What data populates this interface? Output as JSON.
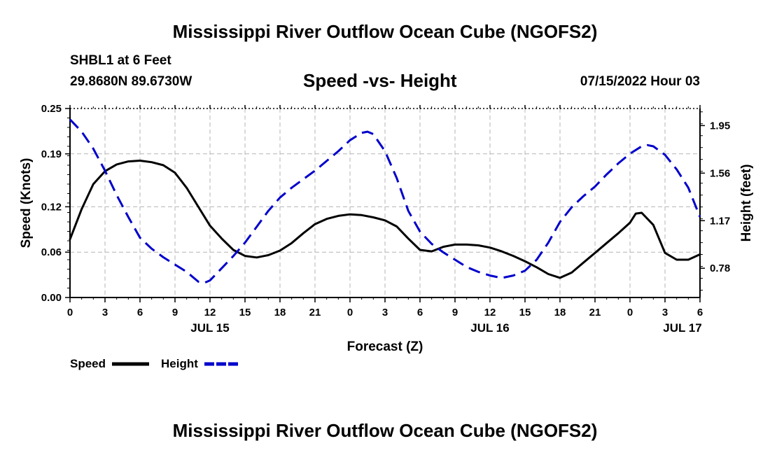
{
  "header": {
    "title": "Mississippi River Outflow Ocean Cube (NGOFS2)",
    "station": "SHBL1 at 6 Feet",
    "coords": "29.8680N  89.6730W",
    "subtitle": "Speed -vs- Height",
    "timestamp": "07/15/2022 Hour 03"
  },
  "footer": {
    "title": "Mississippi River Outflow Ocean Cube (NGOFS2)"
  },
  "colors": {
    "speed": "#000000",
    "height": "#0000cc",
    "grid": "#b4b4b4"
  },
  "chart_data": {
    "type": "line",
    "title": "Speed -vs- Height",
    "xlabel": "Forecast (Z)",
    "ylabel": "Speed (Knots)",
    "y2label": "Height (feet)",
    "x_range_hours": [
      0,
      54
    ],
    "x_ticks": [
      {
        "h": 0,
        "label": "0"
      },
      {
        "h": 3,
        "label": "3"
      },
      {
        "h": 6,
        "label": "6"
      },
      {
        "h": 9,
        "label": "9"
      },
      {
        "h": 12,
        "label": "12"
      },
      {
        "h": 15,
        "label": "15"
      },
      {
        "h": 18,
        "label": "18"
      },
      {
        "h": 21,
        "label": "21"
      },
      {
        "h": 24,
        "label": "0"
      },
      {
        "h": 27,
        "label": "3"
      },
      {
        "h": 30,
        "label": "6"
      },
      {
        "h": 33,
        "label": "9"
      },
      {
        "h": 36,
        "label": "12"
      },
      {
        "h": 39,
        "label": "15"
      },
      {
        "h": 42,
        "label": "18"
      },
      {
        "h": 45,
        "label": "21"
      },
      {
        "h": 48,
        "label": "0"
      },
      {
        "h": 51,
        "label": "3"
      },
      {
        "h": 54,
        "label": "6"
      }
    ],
    "date_labels": [
      {
        "h": 12,
        "label": "JUL 15"
      },
      {
        "h": 36,
        "label": "JUL 16"
      },
      {
        "h": 52.5,
        "label": "JUL 17"
      }
    ],
    "ylim": [
      0,
      0.25
    ],
    "y_ticks": [
      "0.00",
      "0.06",
      "0.12",
      "0.19",
      "0.25"
    ],
    "y2lim": [
      0.54,
      2.09
    ],
    "y2_ticks": [
      "0.78",
      "1.17",
      "1.56",
      "1.95"
    ],
    "legend": [
      {
        "name": "Speed",
        "style": "solid"
      },
      {
        "name": "Height",
        "style": "dashed"
      }
    ],
    "series": [
      {
        "name": "Speed",
        "axis": "left",
        "style": "solid",
        "x": [
          0,
          1,
          2,
          3,
          4,
          5,
          6,
          7,
          8,
          9,
          10,
          11,
          12,
          13,
          14,
          15,
          16,
          17,
          18,
          19,
          20,
          21,
          22,
          23,
          24,
          25,
          26,
          27,
          28,
          29,
          30,
          31,
          32,
          33,
          34,
          35,
          36,
          37,
          38,
          39,
          40,
          41,
          42,
          43,
          44,
          45,
          46,
          47,
          48,
          48.5,
          49,
          50,
          51,
          52,
          53,
          54
        ],
        "values": [
          0.077,
          0.117,
          0.15,
          0.167,
          0.176,
          0.18,
          0.181,
          0.179,
          0.175,
          0.165,
          0.145,
          0.12,
          0.095,
          0.078,
          0.063,
          0.055,
          0.053,
          0.056,
          0.062,
          0.072,
          0.085,
          0.097,
          0.104,
          0.108,
          0.11,
          0.109,
          0.106,
          0.102,
          0.094,
          0.078,
          0.063,
          0.061,
          0.067,
          0.07,
          0.07,
          0.069,
          0.066,
          0.061,
          0.055,
          0.048,
          0.04,
          0.031,
          0.026,
          0.033,
          0.046,
          0.059,
          0.072,
          0.085,
          0.099,
          0.111,
          0.112,
          0.096,
          0.059,
          0.05,
          0.05,
          0.057
        ]
      },
      {
        "name": "Height",
        "axis": "right",
        "style": "dashed",
        "x": [
          0,
          1,
          2,
          3,
          4,
          5,
          6,
          7,
          8,
          9,
          10,
          11,
          11.5,
          12,
          13,
          14,
          15,
          16,
          17,
          18,
          19,
          20,
          21,
          22,
          23,
          24,
          25,
          25.5,
          26,
          27,
          28,
          29,
          30,
          31,
          32,
          33,
          34,
          35,
          36,
          37,
          38,
          39,
          40,
          41,
          42,
          43,
          44,
          45,
          46,
          47,
          48,
          49,
          49.5,
          50,
          51,
          52,
          53,
          54
        ],
        "values": [
          2.0,
          1.9,
          1.76,
          1.58,
          1.38,
          1.2,
          1.03,
          0.94,
          0.87,
          0.81,
          0.75,
          0.67,
          0.66,
          0.68,
          0.78,
          0.88,
          0.99,
          1.12,
          1.25,
          1.36,
          1.44,
          1.51,
          1.58,
          1.66,
          1.74,
          1.83,
          1.89,
          1.9,
          1.88,
          1.74,
          1.52,
          1.25,
          1.08,
          0.98,
          0.91,
          0.85,
          0.79,
          0.75,
          0.72,
          0.7,
          0.72,
          0.76,
          0.85,
          0.99,
          1.16,
          1.28,
          1.37,
          1.45,
          1.55,
          1.64,
          1.72,
          1.78,
          1.79,
          1.78,
          1.71,
          1.59,
          1.44,
          1.2
        ]
      }
    ]
  }
}
